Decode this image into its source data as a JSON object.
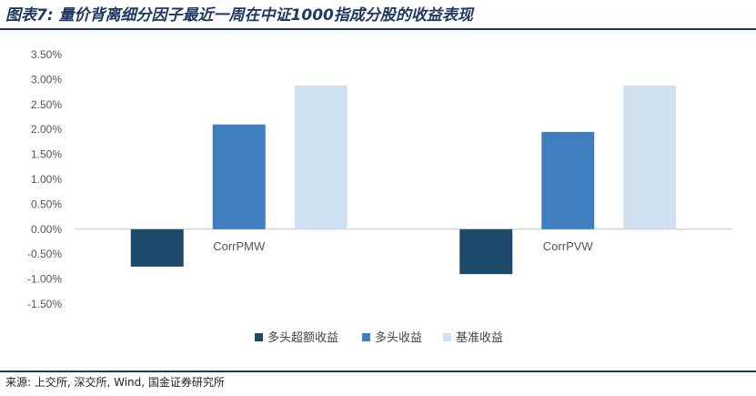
{
  "title": "图表7: 量价背离细分因子最近一周在中证1000指成分股的收益表现",
  "source": "来源: 上交所, 深交所, Wind, 国金证券研究所",
  "colors": {
    "title": "#1f3864",
    "series": [
      "#1b4a6b",
      "#3f7fc0",
      "#cfe0f1"
    ]
  },
  "chart_data": {
    "type": "bar",
    "categories": [
      "CorrPMW",
      "CorrPVW"
    ],
    "series": [
      {
        "name": "多头超额收益",
        "values": [
          -0.75,
          -0.9
        ]
      },
      {
        "name": "多头收益",
        "values": [
          2.1,
          1.95
        ]
      },
      {
        "name": "基准收益",
        "values": [
          2.88,
          2.88
        ]
      }
    ],
    "ylim": [
      -1.5,
      3.5
    ],
    "yticks": [
      "3.50%",
      "3.00%",
      "2.50%",
      "2.00%",
      "1.50%",
      "1.00%",
      "0.50%",
      "0.00%",
      "-0.50%",
      "-1.00%",
      "-1.50%"
    ],
    "legend": "bottom",
    "grid": false
  }
}
